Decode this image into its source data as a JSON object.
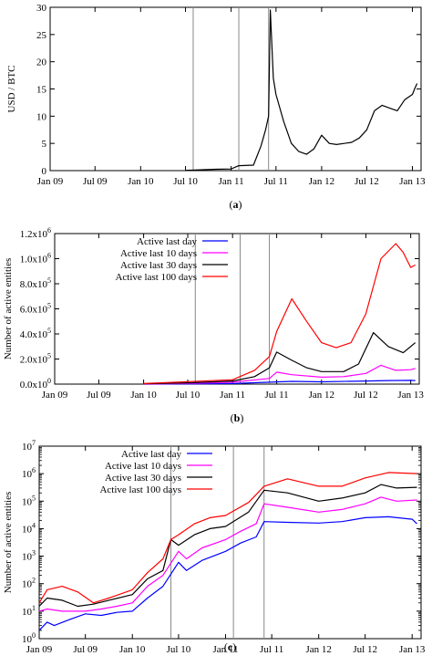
{
  "chart_data": [
    {
      "type": "line",
      "caption": "(a)",
      "ylabel": "USD / BTC",
      "x_tick_labels": [
        "Jan 09",
        "Jul 09",
        "Jan 10",
        "Jul 10",
        "Jan 11",
        "Jul 11",
        "Jan 12",
        "Jul 12",
        "Jan 13"
      ],
      "x_tick_values": [
        "2009-01",
        "2009-07",
        "2010-01",
        "2010-07",
        "2011-01",
        "2011-07",
        "2012-01",
        "2012-07",
        "2013-01"
      ],
      "y_ticks": [
        0,
        5,
        10,
        15,
        20,
        25,
        30
      ],
      "ylim": [
        0,
        30
      ],
      "events": [
        "2010-08",
        "2011-02",
        "2011-06"
      ],
      "series": [
        {
          "color": "#000000",
          "points": [
            [
              "2010-07",
              0.05
            ],
            [
              "2010-11",
              0.25
            ],
            [
              "2011-01",
              0.3
            ],
            [
              "2011-02",
              0.9
            ],
            [
              "2011-04",
              1.0
            ],
            [
              "2011-05",
              4.5
            ],
            [
              "2011-05-20",
              7.5
            ],
            [
              "2011-06-01",
              10
            ],
            [
              "2011-06-08",
              29.5
            ],
            [
              "2011-06-20",
              17
            ],
            [
              "2011-07",
              14
            ],
            [
              "2011-08",
              9
            ],
            [
              "2011-09",
              5
            ],
            [
              "2011-10",
              3.5
            ],
            [
              "2011-11",
              3
            ],
            [
              "2011-12",
              4
            ],
            [
              "2012-01",
              6.5
            ],
            [
              "2012-02",
              5
            ],
            [
              "2012-03",
              4.8
            ],
            [
              "2012-04",
              5
            ],
            [
              "2012-05",
              5.2
            ],
            [
              "2012-06",
              6
            ],
            [
              "2012-07",
              7.5
            ],
            [
              "2012-08",
              11
            ],
            [
              "2012-09",
              12
            ],
            [
              "2012-10",
              11.5
            ],
            [
              "2012-11",
              11
            ],
            [
              "2012-12",
              13
            ],
            [
              "2013-01",
              14
            ],
            [
              "2013-01-10",
              15
            ],
            [
              "2013-01-20",
              16
            ]
          ]
        }
      ]
    },
    {
      "type": "line",
      "caption": "(b)",
      "ylabel": "Number of active entities",
      "x_tick_labels": [
        "Jan 09",
        "Jul 09",
        "Jan 10",
        "Jul 10",
        "Jan 11",
        "Jul 11",
        "Jan 12",
        "Jul 12",
        "Jan 13"
      ],
      "x_tick_values": [
        "2009-01",
        "2009-07",
        "2010-01",
        "2010-07",
        "2011-01",
        "2011-07",
        "2012-01",
        "2012-07",
        "2013-01"
      ],
      "y_ticks": [
        0,
        200000,
        400000,
        600000,
        800000,
        1000000,
        1200000
      ],
      "y_tick_labels": [
        {
          "m": "0.0",
          "e": "0"
        },
        {
          "m": "2.0",
          "e": "5"
        },
        {
          "m": "4.0",
          "e": "5"
        },
        {
          "m": "6.0",
          "e": "5"
        },
        {
          "m": "8.0",
          "e": "5"
        },
        {
          "m": "1.0",
          "e": "6"
        },
        {
          "m": "1.2",
          "e": "6"
        }
      ],
      "ylim": [
        0,
        1200000
      ],
      "events": [
        "2010-08",
        "2011-02",
        "2011-06"
      ],
      "legend_position": "top-left",
      "series": [
        {
          "name": "Active last day",
          "color": "#0000ff",
          "points": [
            [
              "2010-01",
              300
            ],
            [
              "2010-07",
              1500
            ],
            [
              "2011-01",
              4000
            ],
            [
              "2011-06",
              15000
            ],
            [
              "2011-09",
              22000
            ],
            [
              "2012-01",
              18000
            ],
            [
              "2012-07",
              25000
            ],
            [
              "2012-10",
              28000
            ],
            [
              "2013-01",
              30000
            ],
            [
              "2013-01-20",
              28000
            ]
          ]
        },
        {
          "name": "Active last 10 days",
          "color": "#ff00ff",
          "points": [
            [
              "2010-01",
              1000
            ],
            [
              "2010-07",
              5000
            ],
            [
              "2011-01",
              15000
            ],
            [
              "2011-06",
              45000
            ],
            [
              "2011-07",
              95000
            ],
            [
              "2011-09",
              75000
            ],
            [
              "2012-01",
              55000
            ],
            [
              "2012-04",
              60000
            ],
            [
              "2012-07",
              85000
            ],
            [
              "2012-09",
              150000
            ],
            [
              "2012-11",
              110000
            ],
            [
              "2013-01",
              115000
            ],
            [
              "2013-01-20",
              125000
            ]
          ]
        },
        {
          "name": "Active last 30 days",
          "color": "#000000",
          "points": [
            [
              "2010-01",
              2000
            ],
            [
              "2010-07",
              10000
            ],
            [
              "2011-01",
              25000
            ],
            [
              "2011-04",
              60000
            ],
            [
              "2011-06",
              130000
            ],
            [
              "2011-07",
              255000
            ],
            [
              "2011-09",
              190000
            ],
            [
              "2011-11",
              130000
            ],
            [
              "2012-01",
              100000
            ],
            [
              "2012-04",
              100000
            ],
            [
              "2012-06",
              160000
            ],
            [
              "2012-08",
              410000
            ],
            [
              "2012-10",
              300000
            ],
            [
              "2012-12",
              250000
            ],
            [
              "2013-01-20",
              330000
            ]
          ]
        },
        {
          "name": "Active last 100 days",
          "color": "#ff0000",
          "points": [
            [
              "2010-01",
              4000
            ],
            [
              "2010-07",
              20000
            ],
            [
              "2011-01",
              35000
            ],
            [
              "2011-04",
              110000
            ],
            [
              "2011-06",
              220000
            ],
            [
              "2011-07",
              420000
            ],
            [
              "2011-09",
              680000
            ],
            [
              "2011-11",
              500000
            ],
            [
              "2012-01",
              330000
            ],
            [
              "2012-03",
              290000
            ],
            [
              "2012-05",
              330000
            ],
            [
              "2012-07",
              560000
            ],
            [
              "2012-09",
              1000000
            ],
            [
              "2012-11",
              1120000
            ],
            [
              "2012-12",
              1050000
            ],
            [
              "2013-01",
              930000
            ],
            [
              "2013-01-20",
              950000
            ]
          ]
        }
      ]
    },
    {
      "type": "line",
      "caption": "(c)",
      "ylabel": "Number of active entities",
      "yscale": "log",
      "x_tick_labels": [
        "Jan 09",
        "Jul 09",
        "Jan 10",
        "Jul 10",
        "Jan 11",
        "Jul 11",
        "Jan 12",
        "Jul 12",
        "Jan 13"
      ],
      "x_tick_values": [
        "2009-01",
        "2009-07",
        "2010-01",
        "2010-07",
        "2011-01",
        "2011-07",
        "2012-01",
        "2012-07",
        "2013-01"
      ],
      "y_ticks": [
        1,
        10,
        100,
        1000,
        10000,
        100000,
        1000000,
        10000000
      ],
      "y_tick_labels": [
        {
          "m": "10",
          "e": "0"
        },
        {
          "m": "10",
          "e": "1"
        },
        {
          "m": "10",
          "e": "2"
        },
        {
          "m": "10",
          "e": "3"
        },
        {
          "m": "10",
          "e": "4"
        },
        {
          "m": "10",
          "e": "5"
        },
        {
          "m": "10",
          "e": "6"
        },
        {
          "m": "10",
          "e": "7"
        }
      ],
      "ylim": [
        1,
        10000000
      ],
      "events": [
        "2010-06",
        "2011-02",
        "2011-06"
      ],
      "legend_position": "top-left",
      "series": [
        {
          "name": "Active last day",
          "color": "#0000ff",
          "points": [
            [
              "2009-01",
              2
            ],
            [
              "2009-02",
              4
            ],
            [
              "2009-03",
              3
            ],
            [
              "2009-05",
              5
            ],
            [
              "2009-07",
              8
            ],
            [
              "2009-09",
              7
            ],
            [
              "2009-11",
              9
            ],
            [
              "2010-01",
              10
            ],
            [
              "2010-03",
              30
            ],
            [
              "2010-05",
              80
            ],
            [
              "2010-07",
              600
            ],
            [
              "2010-08",
              300
            ],
            [
              "2010-10",
              700
            ],
            [
              "2011-01",
              1500
            ],
            [
              "2011-03",
              3000
            ],
            [
              "2011-05",
              5000
            ],
            [
              "2011-06",
              18000
            ],
            [
              "2011-09",
              17000
            ],
            [
              "2012-01",
              16000
            ],
            [
              "2012-04",
              18000
            ],
            [
              "2012-07",
              25000
            ],
            [
              "2012-10",
              27000
            ],
            [
              "2013-01",
              22000
            ],
            [
              "2013-01-20",
              15000
            ]
          ]
        },
        {
          "name": "Active last 10 days",
          "color": "#ff00ff",
          "points": [
            [
              "2009-01",
              10
            ],
            [
              "2009-02",
              12
            ],
            [
              "2009-04",
              10
            ],
            [
              "2009-07",
              10
            ],
            [
              "2009-09",
              12
            ],
            [
              "2009-11",
              15
            ],
            [
              "2010-01",
              20
            ],
            [
              "2010-03",
              80
            ],
            [
              "2010-05",
              200
            ],
            [
              "2010-07",
              1500
            ],
            [
              "2010-08",
              800
            ],
            [
              "2010-10",
              2000
            ],
            [
              "2011-01",
              4000
            ],
            [
              "2011-03",
              8000
            ],
            [
              "2011-05",
              15000
            ],
            [
              "2011-06",
              80000
            ],
            [
              "2011-09",
              60000
            ],
            [
              "2012-01",
              40000
            ],
            [
              "2012-04",
              50000
            ],
            [
              "2012-07",
              80000
            ],
            [
              "2012-09",
              140000
            ],
            [
              "2012-11",
              100000
            ],
            [
              "2013-01-20",
              110000
            ]
          ]
        },
        {
          "name": "Active last 30 days",
          "color": "#000000",
          "points": [
            [
              "2009-01",
              15
            ],
            [
              "2009-02",
              30
            ],
            [
              "2009-04",
              25
            ],
            [
              "2009-06",
              15
            ],
            [
              "2009-08",
              18
            ],
            [
              "2009-10",
              25
            ],
            [
              "2010-01",
              40
            ],
            [
              "2010-03",
              150
            ],
            [
              "2010-05",
              300
            ],
            [
              "2010-06",
              4000
            ],
            [
              "2010-07",
              2500
            ],
            [
              "2010-09",
              6000
            ],
            [
              "2010-11",
              10000
            ],
            [
              "2011-01",
              12000
            ],
            [
              "2011-04",
              40000
            ],
            [
              "2011-06",
              250000
            ],
            [
              "2011-09",
              200000
            ],
            [
              "2012-01",
              100000
            ],
            [
              "2012-04",
              130000
            ],
            [
              "2012-07",
              200000
            ],
            [
              "2012-09",
              400000
            ],
            [
              "2012-11",
              300000
            ],
            [
              "2013-01-20",
              320000
            ]
          ]
        },
        {
          "name": "Active last 100 days",
          "color": "#ff0000",
          "points": [
            [
              "2009-01",
              20
            ],
            [
              "2009-02",
              60
            ],
            [
              "2009-04",
              80
            ],
            [
              "2009-06",
              50
            ],
            [
              "2009-08",
              20
            ],
            [
              "2009-10",
              30
            ],
            [
              "2010-01",
              60
            ],
            [
              "2010-03",
              250
            ],
            [
              "2010-05",
              800
            ],
            [
              "2010-06",
              4000
            ],
            [
              "2010-07",
              6000
            ],
            [
              "2010-09",
              15000
            ],
            [
              "2010-11",
              25000
            ],
            [
              "2011-01",
              30000
            ],
            [
              "2011-04",
              90000
            ],
            [
              "2011-06",
              350000
            ],
            [
              "2011-09",
              650000
            ],
            [
              "2012-01",
              350000
            ],
            [
              "2012-04",
              350000
            ],
            [
              "2012-07",
              700000
            ],
            [
              "2012-10",
              1100000
            ],
            [
              "2013-01-20",
              1000000
            ]
          ]
        }
      ]
    }
  ]
}
